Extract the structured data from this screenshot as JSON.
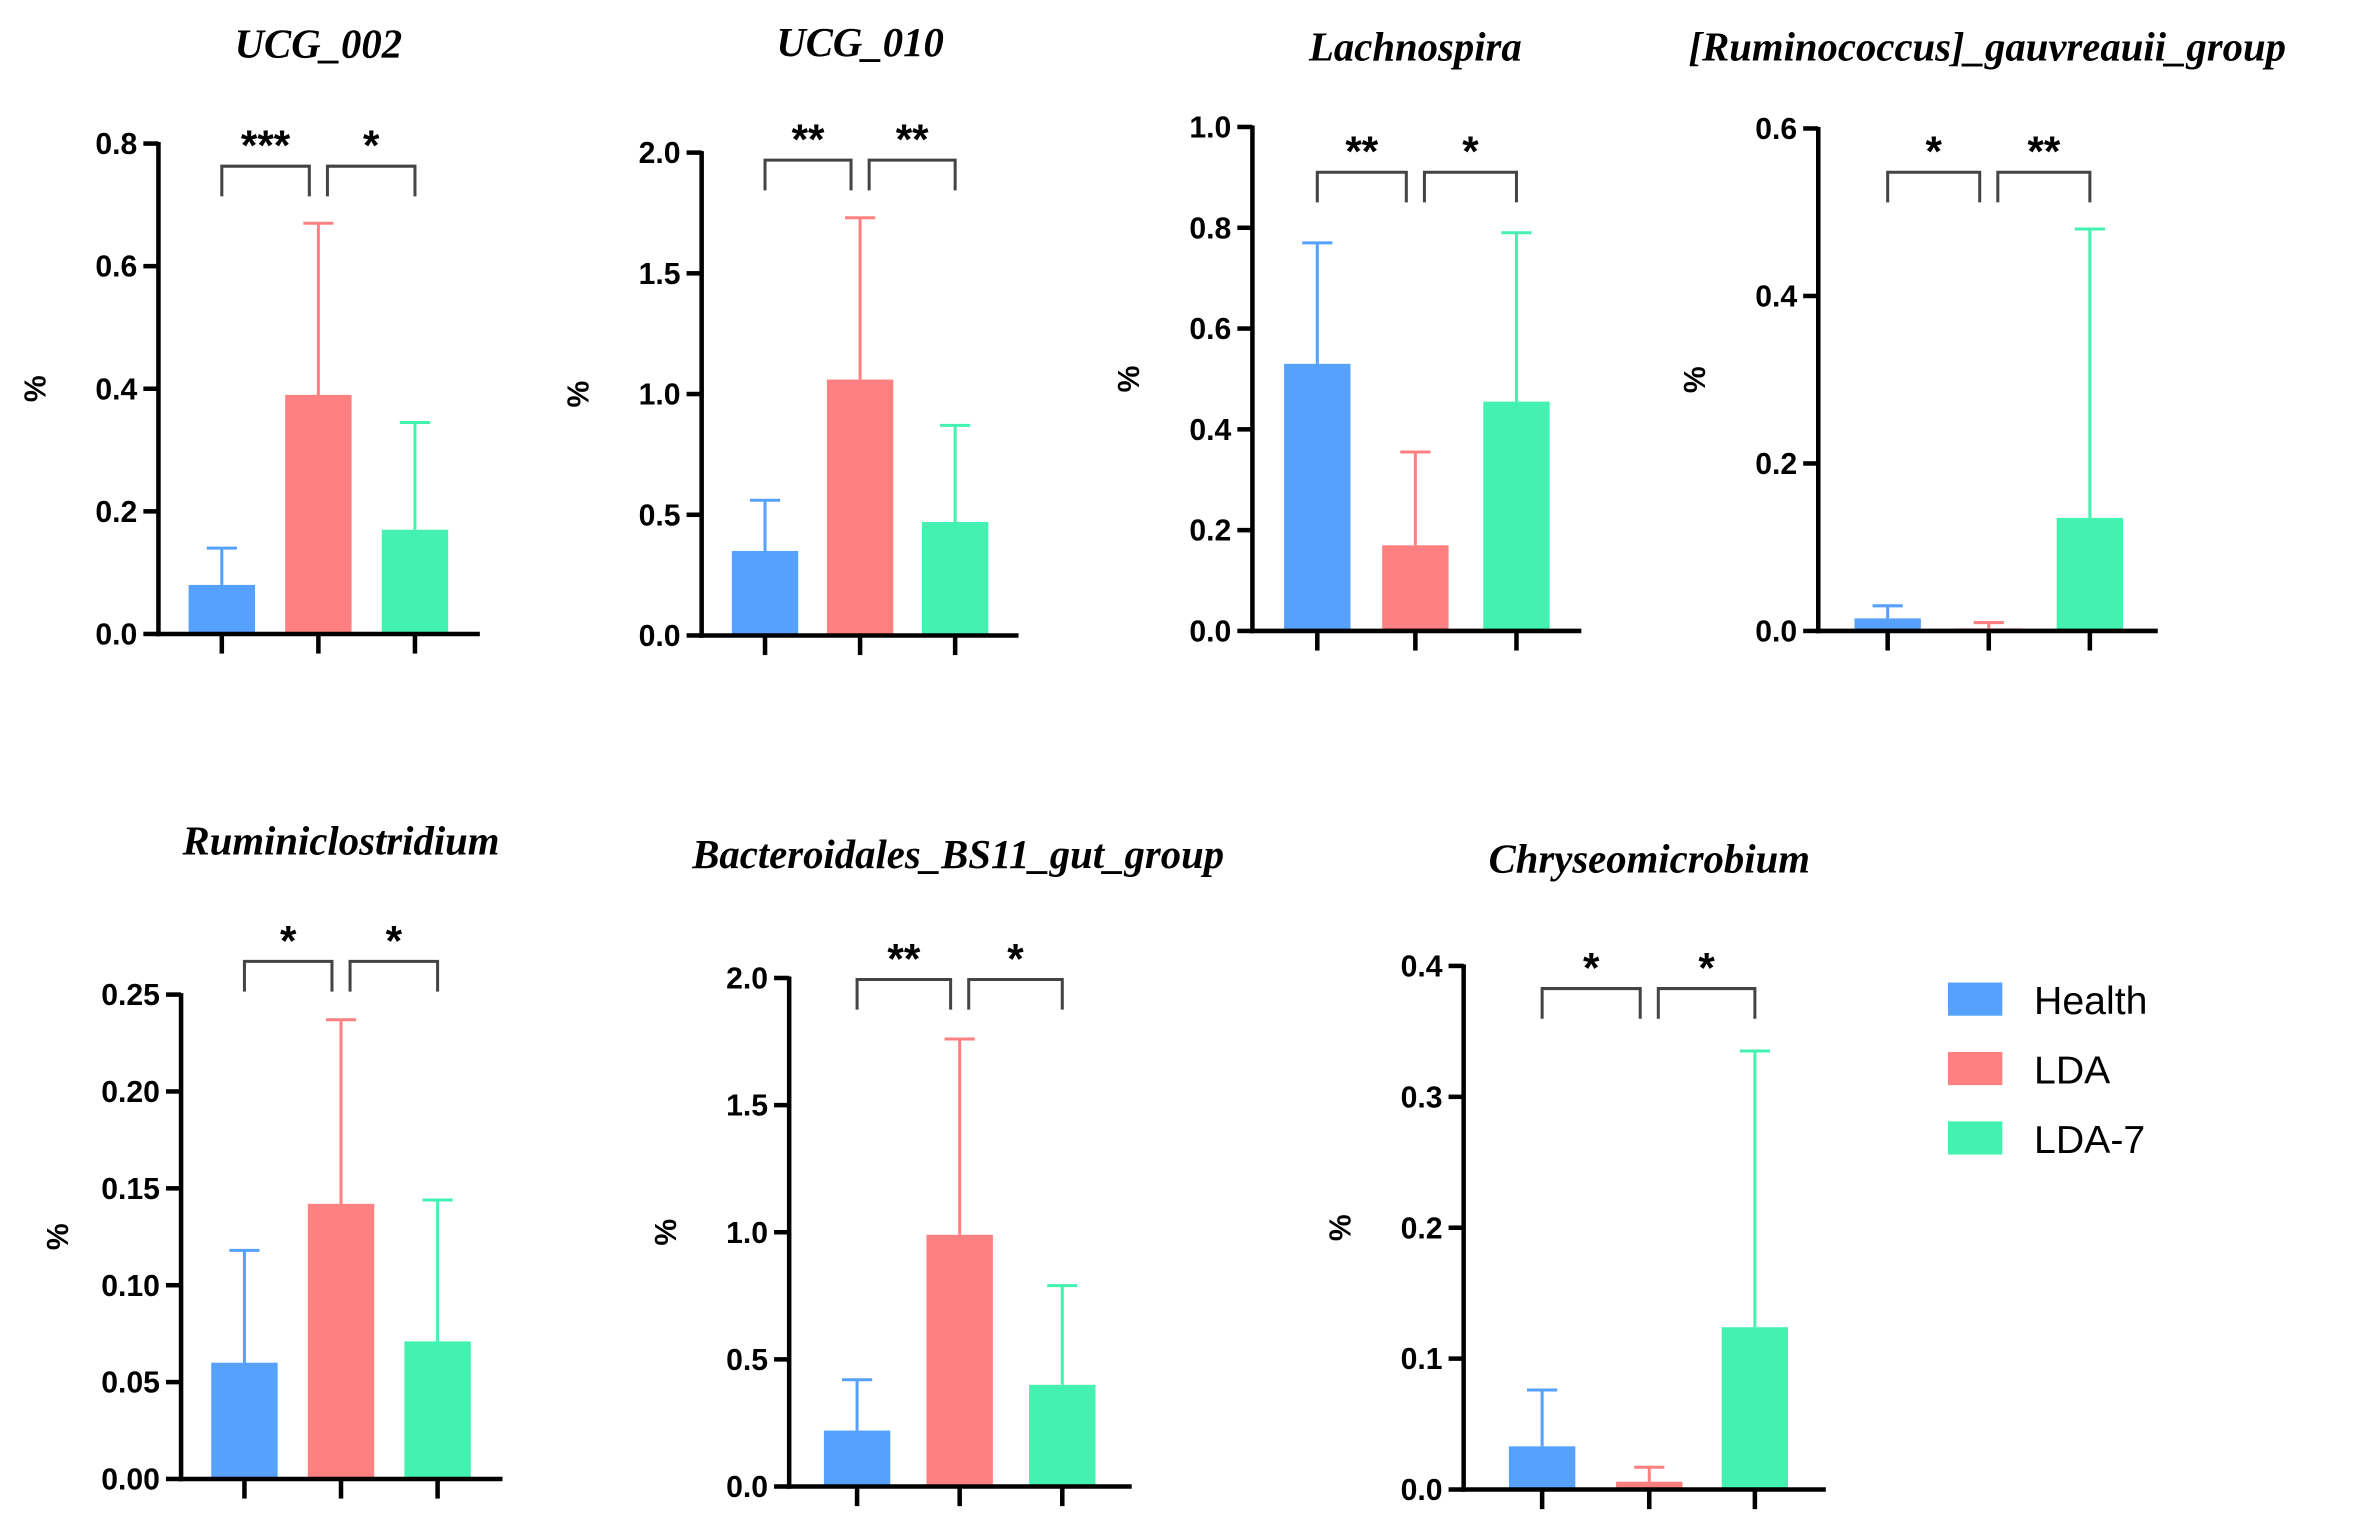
{
  "chart_data": {
    "type": "bar",
    "categories": [
      "Health",
      "LDA",
      "LDA-7"
    ],
    "colors": {
      "Health": "#55a1fb",
      "LDA": "#fe8081",
      "LDA-7": "#43f1b0"
    },
    "legend": {
      "entries": [
        "Health",
        "LDA",
        "LDA-7"
      ],
      "placement": "right"
    },
    "ylabel": "%",
    "panels": [
      {
        "title": "UCG_002",
        "ylim": [
          0,
          0.8
        ],
        "ticks": [
          "0.0",
          "0.2",
          "0.4",
          "0.6",
          "0.8"
        ],
        "values": [
          0.08,
          0.39,
          0.17
        ],
        "error_upper": [
          0.14,
          0.67,
          0.345
        ],
        "significance": [
          "***",
          "*"
        ]
      },
      {
        "title": "UCG_010",
        "ylim": [
          0,
          2.0
        ],
        "ticks": [
          "0.0",
          "0.5",
          "1.0",
          "1.5",
          "2.0"
        ],
        "values": [
          0.35,
          1.06,
          0.47
        ],
        "error_upper": [
          0.56,
          1.73,
          0.87
        ],
        "significance": [
          "**",
          "**"
        ]
      },
      {
        "title": "Lachnospira",
        "ylim": [
          0,
          1.0
        ],
        "ticks": [
          "0.0",
          "0.2",
          "0.4",
          "0.6",
          "0.8",
          "1.0"
        ],
        "values": [
          0.53,
          0.17,
          0.455
        ],
        "error_upper": [
          0.77,
          0.355,
          0.79
        ],
        "significance": [
          "**",
          "*"
        ]
      },
      {
        "title": "[Ruminococcus]_gauvreauii_group",
        "ylim": [
          0,
          0.6
        ],
        "ticks": [
          "0.0",
          "0.2",
          "0.4",
          "0.6"
        ],
        "values": [
          0.015,
          0.003,
          0.135
        ],
        "error_upper": [
          0.03,
          0.01,
          0.48
        ],
        "significance": [
          "*",
          "**"
        ]
      },
      {
        "title": "Ruminiclostridium",
        "ylim": [
          0,
          0.25
        ],
        "ticks": [
          "0.00",
          "0.05",
          "0.10",
          "0.15",
          "0.20",
          "0.25"
        ],
        "values": [
          0.06,
          0.142,
          0.071
        ],
        "error_upper": [
          0.118,
          0.237,
          0.144
        ],
        "significance": [
          "*",
          "*"
        ]
      },
      {
        "title": "Bacteroidales_BS11_gut_group",
        "ylim": [
          0,
          2.0
        ],
        "ticks": [
          "0.0",
          "0.5",
          "1.0",
          "1.5",
          "2.0"
        ],
        "values": [
          0.22,
          0.99,
          0.4
        ],
        "error_upper": [
          0.42,
          1.76,
          0.79
        ],
        "significance": [
          "**",
          "*"
        ]
      },
      {
        "title": "Chryseomicrobium",
        "ylim": [
          0,
          0.4
        ],
        "ticks": [
          "0.0",
          "0.1",
          "0.2",
          "0.3",
          "0.4"
        ],
        "values": [
          0.033,
          0.006,
          0.124
        ],
        "error_upper": [
          0.076,
          0.017,
          0.335
        ],
        "significance": [
          "*",
          "*"
        ]
      }
    ]
  }
}
